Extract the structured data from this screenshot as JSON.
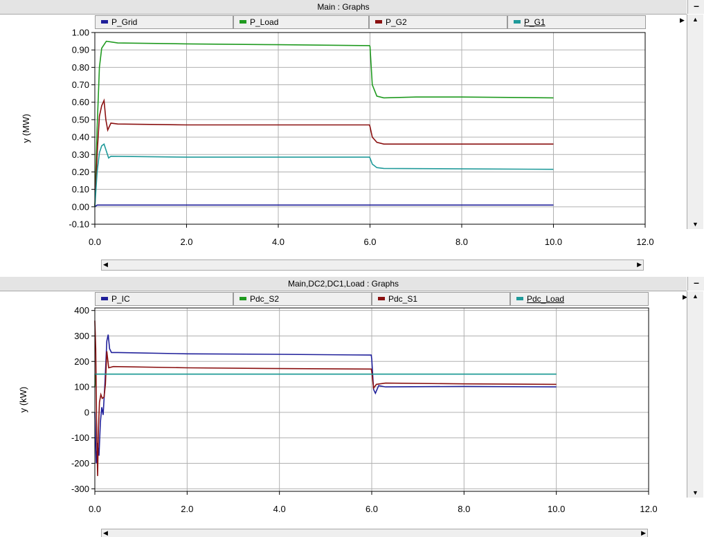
{
  "charts": [
    {
      "title": "Main : Graphs",
      "legend": [
        {
          "name": "P_Grid",
          "color": "#1f1f9a"
        },
        {
          "name": "P_Load",
          "color": "#1f9a1f"
        },
        {
          "name": "P_G2",
          "color": "#8a1010"
        },
        {
          "name": "P_G1",
          "color": "#1f9a9a"
        }
      ],
      "ylabel": "y (MW)"
    },
    {
      "title": "Main,DC2,DC1,Load : Graphs",
      "legend": [
        {
          "name": "P_IC",
          "color": "#1f1f9a"
        },
        {
          "name": "Pdc_S2",
          "color": "#1f9a1f"
        },
        {
          "name": "Pdc_S1",
          "color": "#8a1010"
        },
        {
          "name": "Pdc_Load",
          "color": "#1f9a9a"
        }
      ],
      "ylabel": "y (kW)"
    }
  ],
  "chart_data": [
    {
      "type": "line",
      "title": "Main : Graphs",
      "xlabel": "",
      "ylabel": "y (MW)",
      "xlim": [
        0,
        12
      ],
      "ylim": [
        -0.1,
        1.0
      ],
      "x_ticks": [
        "0.0",
        "2.0",
        "4.0",
        "6.0",
        "8.0",
        "10.0",
        "12.0"
      ],
      "y_ticks": [
        "1.00",
        "0.90",
        "0.80",
        "0.70",
        "0.60",
        "0.50",
        "0.40",
        "0.30",
        "0.20",
        "0.10",
        "0.00",
        "-0.10"
      ],
      "grid": true,
      "legend_position": "top",
      "series": [
        {
          "name": "P_Grid",
          "color": "#1f1f9a",
          "points": [
            [
              0.0,
              0.0
            ],
            [
              0.05,
              0.01
            ],
            [
              10.0,
              0.01
            ]
          ]
        },
        {
          "name": "P_Load",
          "color": "#1f9a1f",
          "points": [
            [
              0.0,
              0.0
            ],
            [
              0.05,
              0.45
            ],
            [
              0.1,
              0.8
            ],
            [
              0.15,
              0.91
            ],
            [
              0.25,
              0.95
            ],
            [
              0.5,
              0.94
            ],
            [
              2.0,
              0.935
            ],
            [
              4.0,
              0.93
            ],
            [
              5.99,
              0.925
            ],
            [
              6.0,
              0.92
            ],
            [
              6.05,
              0.7
            ],
            [
              6.15,
              0.635
            ],
            [
              6.3,
              0.625
            ],
            [
              7.0,
              0.63
            ],
            [
              8.0,
              0.63
            ],
            [
              10.0,
              0.625
            ]
          ]
        },
        {
          "name": "P_G2",
          "color": "#8a1010",
          "points": [
            [
              0.0,
              0.0
            ],
            [
              0.05,
              0.3
            ],
            [
              0.1,
              0.52
            ],
            [
              0.15,
              0.58
            ],
            [
              0.2,
              0.61
            ],
            [
              0.24,
              0.5
            ],
            [
              0.28,
              0.44
            ],
            [
              0.35,
              0.48
            ],
            [
              0.5,
              0.475
            ],
            [
              2.0,
              0.47
            ],
            [
              5.99,
              0.47
            ],
            [
              6.0,
              0.46
            ],
            [
              6.05,
              0.4
            ],
            [
              6.15,
              0.37
            ],
            [
              6.3,
              0.36
            ],
            [
              10.0,
              0.36
            ]
          ]
        },
        {
          "name": "P_G1",
          "color": "#1f9a9a",
          "points": [
            [
              0.0,
              0.0
            ],
            [
              0.05,
              0.2
            ],
            [
              0.1,
              0.31
            ],
            [
              0.15,
              0.35
            ],
            [
              0.2,
              0.36
            ],
            [
              0.25,
              0.32
            ],
            [
              0.3,
              0.28
            ],
            [
              0.35,
              0.29
            ],
            [
              2.0,
              0.285
            ],
            [
              5.99,
              0.285
            ],
            [
              6.0,
              0.28
            ],
            [
              6.05,
              0.245
            ],
            [
              6.15,
              0.225
            ],
            [
              6.3,
              0.22
            ],
            [
              10.0,
              0.215
            ]
          ]
        }
      ]
    },
    {
      "type": "line",
      "title": "Main,DC2,DC1,Load : Graphs",
      "xlabel": "",
      "ylabel": "y (kW)",
      "xlim": [
        0,
        12
      ],
      "ylim": [
        -310,
        410
      ],
      "x_ticks": [
        "0.0",
        "2.0",
        "4.0",
        "6.0",
        "8.0",
        "10.0",
        "12.0"
      ],
      "y_ticks": [
        "400",
        "300",
        "200",
        "100",
        "0",
        "-100",
        "-200",
        "-300"
      ],
      "grid": true,
      "legend_position": "top",
      "series": [
        {
          "name": "P_IC",
          "color": "#1f1f9a",
          "points": [
            [
              0.0,
              0.0
            ],
            [
              0.03,
              -200
            ],
            [
              0.06,
              -120
            ],
            [
              0.09,
              -170
            ],
            [
              0.12,
              -40
            ],
            [
              0.15,
              20
            ],
            [
              0.18,
              -10
            ],
            [
              0.22,
              120
            ],
            [
              0.26,
              280
            ],
            [
              0.29,
              305
            ],
            [
              0.32,
              250
            ],
            [
              0.36,
              235
            ],
            [
              0.5,
              235
            ],
            [
              2.0,
              230
            ],
            [
              4.0,
              228
            ],
            [
              5.99,
              225
            ],
            [
              6.0,
              210
            ],
            [
              6.04,
              90
            ],
            [
              6.08,
              75
            ],
            [
              6.15,
              105
            ],
            [
              6.3,
              100
            ],
            [
              8.0,
              102
            ],
            [
              10.0,
              100
            ]
          ]
        },
        {
          "name": "Pdc_S2",
          "color": "#1f9a1f",
          "points": [
            [
              0.0,
              100
            ],
            [
              0.02,
              150
            ],
            [
              10.0,
              150
            ]
          ]
        },
        {
          "name": "Pdc_S1",
          "color": "#8a1010",
          "points": [
            [
              0.0,
              360
            ],
            [
              0.02,
              250
            ],
            [
              0.04,
              -80
            ],
            [
              0.06,
              -250
            ],
            [
              0.08,
              -60
            ],
            [
              0.1,
              40
            ],
            [
              0.13,
              70
            ],
            [
              0.16,
              55
            ],
            [
              0.2,
              60
            ],
            [
              0.23,
              110
            ],
            [
              0.26,
              240
            ],
            [
              0.3,
              175
            ],
            [
              0.4,
              180
            ],
            [
              2.0,
              175
            ],
            [
              4.0,
              172
            ],
            [
              5.99,
              170
            ],
            [
              6.0,
              160
            ],
            [
              6.04,
              95
            ],
            [
              6.1,
              110
            ],
            [
              6.3,
              115
            ],
            [
              8.0,
              112
            ],
            [
              10.0,
              110
            ]
          ]
        },
        {
          "name": "Pdc_Load",
          "color": "#1f9a9a",
          "points": [
            [
              0.0,
              150
            ],
            [
              10.0,
              150
            ]
          ]
        }
      ]
    }
  ]
}
